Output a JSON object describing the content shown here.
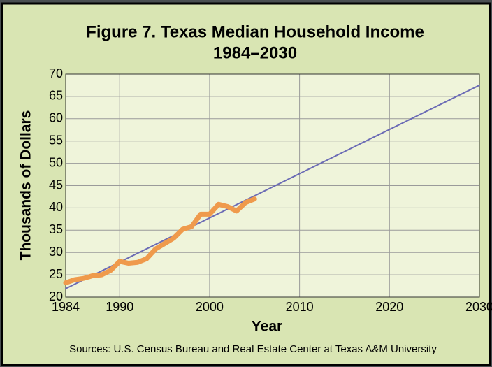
{
  "chart_data": {
    "type": "line",
    "title": "Figure 7. Texas Median Household Income",
    "subtitle": "1984–2030",
    "x_label": "Year",
    "y_label": "Thousands of Dollars",
    "source": "Sources: U.S. Census Bureau and Real Estate Center at Texas A&M University",
    "series": [
      {
        "color": "#6b6bb5",
        "width": 2,
        "x": [
          1984,
          2030
        ],
        "values": [
          21.9,
          67.5
        ]
      },
      {
        "color": "#ef9a4c",
        "width": 7,
        "x": [
          1984,
          1985,
          1986,
          1987,
          1988,
          1989,
          1990,
          1991,
          1992,
          1993,
          1994,
          1995,
          1996,
          1997,
          1998,
          1999,
          2000,
          2001,
          2002,
          2003,
          2004,
          2005
        ],
        "values": [
          23.2,
          23.9,
          24.2,
          24.8,
          25.0,
          26.0,
          28.0,
          27.6,
          27.8,
          28.6,
          30.8,
          32.0,
          33.2,
          35.2,
          35.8,
          38.6,
          38.6,
          40.8,
          40.3,
          39.3,
          41.2,
          42.0
        ]
      }
    ],
    "xlim": [
      1984,
      2030
    ],
    "xticks": [
      1984,
      1990,
      2000,
      2010,
      2020,
      2030
    ],
    "ylim": [
      20,
      70
    ],
    "yticks": [
      20,
      25,
      30,
      35,
      40,
      45,
      50,
      55,
      60,
      65,
      70
    ],
    "grid": true
  }
}
